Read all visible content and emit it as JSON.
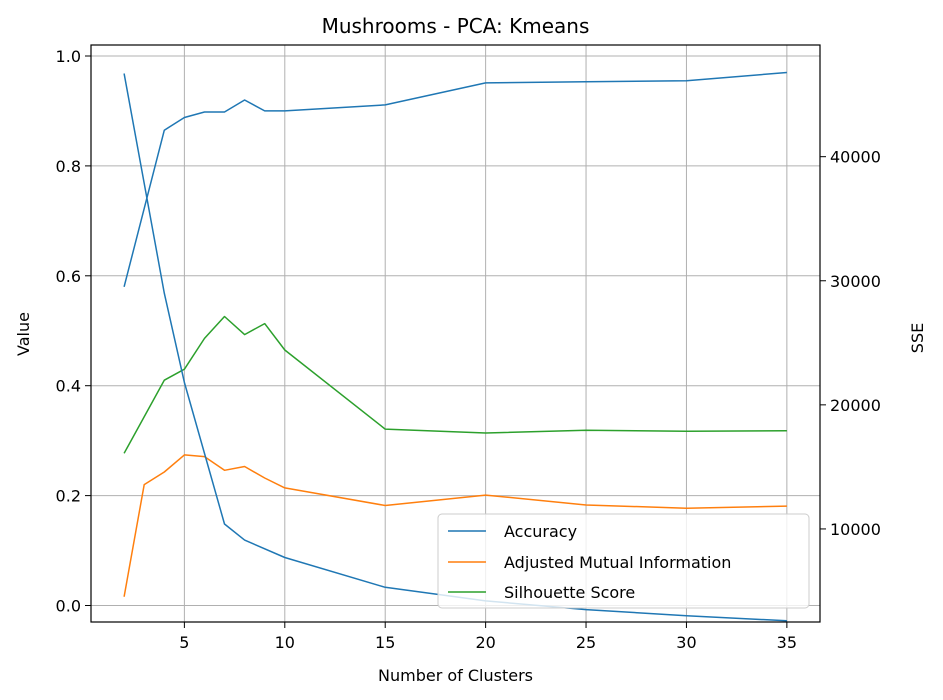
{
  "chart_data": {
    "type": "line",
    "title": "Mushrooms - PCA: Kmeans",
    "xlabel": "Number of Clusters",
    "ylabel": "Value",
    "y2label": "SSE",
    "xlim": [
      0.35,
      36.65
    ],
    "ylim": [
      -0.03,
      1.02
    ],
    "y2lim": [
      2500,
      49000
    ],
    "xticks": [
      5,
      10,
      15,
      20,
      25,
      30,
      35
    ],
    "yticks": [
      0.0,
      0.2,
      0.4,
      0.6,
      0.8,
      1.0
    ],
    "y2ticks": [
      10000,
      20000,
      30000,
      40000
    ],
    "grid": true,
    "legend_position": "lower-right",
    "series": [
      {
        "name": "Accuracy",
        "axis": "left",
        "color": "#1f77b4",
        "x": [
          2,
          4,
          5,
          6,
          7,
          8,
          9,
          10,
          15,
          20,
          25,
          30,
          35
        ],
        "values": [
          0.58,
          0.865,
          0.888,
          0.898,
          0.898,
          0.92,
          0.9,
          0.9,
          0.911,
          0.951,
          0.953,
          0.955,
          0.97
        ]
      },
      {
        "name": "Adjusted Mutual Information",
        "axis": "left",
        "color": "#ff7f0e",
        "x": [
          2,
          3,
          4,
          5,
          6,
          7,
          8,
          9,
          10,
          15,
          20,
          25,
          30,
          35
        ],
        "values": [
          0.016,
          0.22,
          0.243,
          0.274,
          0.271,
          0.246,
          0.253,
          0.232,
          0.214,
          0.182,
          0.201,
          0.183,
          0.177,
          0.181
        ]
      },
      {
        "name": "Silhouette Score",
        "axis": "left",
        "color": "#2ca02c",
        "x": [
          2,
          4,
          5,
          6,
          7,
          8,
          9,
          10,
          15,
          20,
          25,
          30,
          35
        ],
        "values": [
          0.277,
          0.41,
          0.43,
          0.486,
          0.526,
          0.493,
          0.513,
          0.465,
          0.321,
          0.314,
          0.319,
          0.317,
          0.318
        ]
      },
      {
        "axis": "right",
        "color": "#1f77b4",
        "x": [
          2,
          4,
          5,
          7,
          8,
          10,
          15,
          20,
          25,
          30,
          35
        ],
        "values": [
          46700,
          29000,
          21800,
          10400,
          9100,
          7700,
          5300,
          4200,
          3500,
          3000,
          2600
        ]
      }
    ]
  }
}
